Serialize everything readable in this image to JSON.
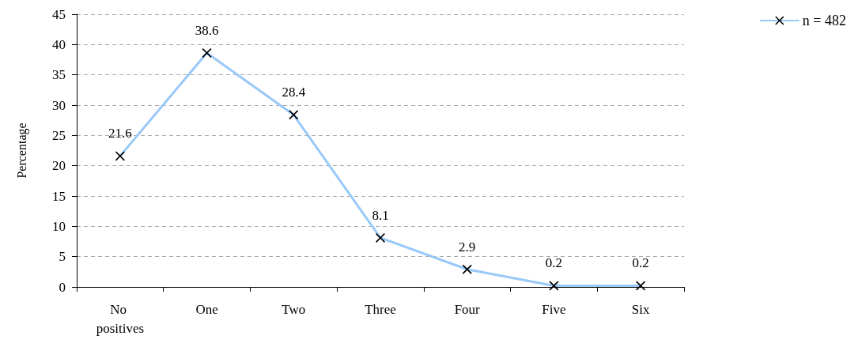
{
  "chart_data": {
    "type": "line",
    "ylabel": "Percentage",
    "categories": [
      "No positives",
      "One",
      "Two",
      "Three",
      "Four",
      "Five",
      "Six"
    ],
    "series": [
      {
        "name": "n = 482",
        "color": "#99c9f9",
        "values": [
          21.6,
          38.6,
          28.4,
          8.1,
          2.9,
          0.2,
          0.2
        ]
      }
    ],
    "ylim": [
      0,
      45
    ],
    "yticks": [
      0,
      5,
      10,
      15,
      20,
      25,
      30,
      35,
      40,
      45
    ],
    "grid": "y",
    "legend": "top right",
    "marker": "cross",
    "line_style": "solid",
    "data_labels": true
  }
}
